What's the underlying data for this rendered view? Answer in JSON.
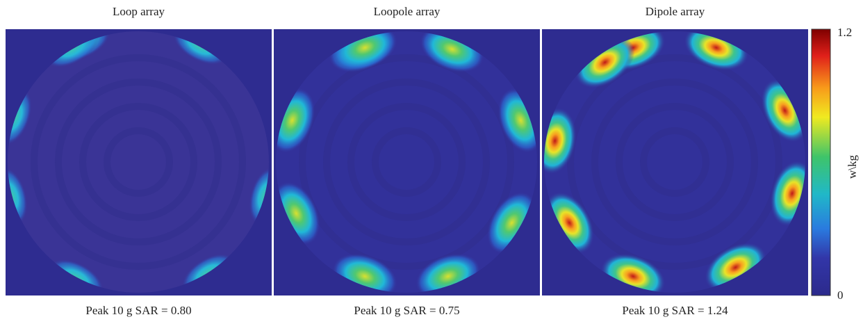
{
  "figure": {
    "panels": [
      {
        "title": "Loop array",
        "caption": "Peak 10 g SAR = 0.80"
      },
      {
        "title": "Loopole array",
        "caption": "Peak 10 g SAR = 0.75"
      },
      {
        "title": "Dipole array",
        "caption": "Peak 10 g SAR = 1.24"
      }
    ],
    "colorbar": {
      "label": "w\\kg",
      "ticks": [
        "1.2",
        "0"
      ]
    }
  }
}
